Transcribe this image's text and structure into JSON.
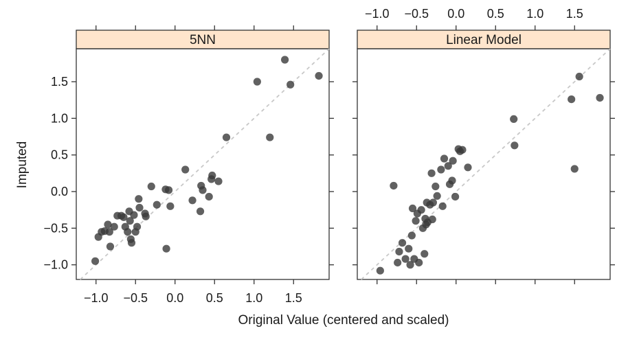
{
  "chart_data": {
    "type": "scatter",
    "xlabel": "Original Value (centered and scaled)",
    "ylabel": "Imputed",
    "xlim": [
      -1.25,
      1.95
    ],
    "ylim": [
      -1.2,
      1.95
    ],
    "x_ticks": [
      -1.0,
      -0.5,
      0.0,
      0.5,
      1.0,
      1.5
    ],
    "x_tick_labels": [
      "−1.0",
      "−0.5",
      "0.0",
      "0.5",
      "1.0",
      "1.5"
    ],
    "y_ticks": [
      -1.0,
      -0.5,
      0.0,
      0.5,
      1.0,
      1.5
    ],
    "y_tick_labels": [
      "−1.0",
      "−0.5",
      "0.0",
      "0.5",
      "1.0",
      "1.5"
    ],
    "reference_line": "y = x",
    "grid": false,
    "colors": {
      "point": "#3a3a3a",
      "strip": "#ffe5cc",
      "reference": "#c8c8c8"
    },
    "panels": [
      {
        "title": "5NN",
        "points": [
          [
            -1.01,
            -0.95
          ],
          [
            -0.97,
            -0.62
          ],
          [
            -0.93,
            -0.55
          ],
          [
            -0.89,
            -0.54
          ],
          [
            -0.85,
            -0.45
          ],
          [
            -0.83,
            -0.55
          ],
          [
            -0.82,
            -0.75
          ],
          [
            -0.77,
            -0.48
          ],
          [
            -0.73,
            -0.33
          ],
          [
            -0.68,
            -0.33
          ],
          [
            -0.65,
            -0.35
          ],
          [
            -0.63,
            -0.48
          ],
          [
            -0.6,
            -0.55
          ],
          [
            -0.58,
            -0.27
          ],
          [
            -0.57,
            -0.4
          ],
          [
            -0.56,
            -0.65
          ],
          [
            -0.55,
            -0.7
          ],
          [
            -0.52,
            -0.32
          ],
          [
            -0.5,
            -0.55
          ],
          [
            -0.48,
            -0.48
          ],
          [
            -0.46,
            -0.1
          ],
          [
            -0.45,
            -0.22
          ],
          [
            -0.38,
            -0.3
          ],
          [
            -0.37,
            -0.34
          ],
          [
            -0.3,
            0.07
          ],
          [
            -0.23,
            -0.18
          ],
          [
            -0.12,
            0.03
          ],
          [
            -0.11,
            -0.78
          ],
          [
            -0.08,
            0.02
          ],
          [
            -0.06,
            -0.2
          ],
          [
            0.13,
            0.3
          ],
          [
            0.22,
            -0.12
          ],
          [
            0.32,
            -0.27
          ],
          [
            0.33,
            0.08
          ],
          [
            0.35,
            0.02
          ],
          [
            0.43,
            -0.07
          ],
          [
            0.46,
            0.17
          ],
          [
            0.47,
            0.22
          ],
          [
            0.55,
            0.14
          ],
          [
            0.65,
            0.74
          ],
          [
            1.04,
            1.5
          ],
          [
            1.2,
            0.74
          ],
          [
            1.39,
            1.8
          ],
          [
            1.46,
            1.46
          ],
          [
            1.82,
            1.58
          ]
        ]
      },
      {
        "title": "Linear Model",
        "points": [
          [
            -0.96,
            -1.08
          ],
          [
            -0.79,
            0.08
          ],
          [
            -0.74,
            -0.97
          ],
          [
            -0.72,
            -0.82
          ],
          [
            -0.68,
            -0.7
          ],
          [
            -0.64,
            -0.92
          ],
          [
            -0.6,
            -0.78
          ],
          [
            -0.58,
            -1.0
          ],
          [
            -0.56,
            -0.6
          ],
          [
            -0.55,
            -0.23
          ],
          [
            -0.53,
            -0.92
          ],
          [
            -0.51,
            -0.4
          ],
          [
            -0.49,
            -0.3
          ],
          [
            -0.47,
            -0.97
          ],
          [
            -0.44,
            -0.25
          ],
          [
            -0.42,
            -0.5
          ],
          [
            -0.4,
            -0.85
          ],
          [
            -0.39,
            -0.37
          ],
          [
            -0.38,
            -0.45
          ],
          [
            -0.37,
            -0.15
          ],
          [
            -0.36,
            -0.42
          ],
          [
            -0.33,
            -0.18
          ],
          [
            -0.31,
            0.25
          ],
          [
            -0.3,
            -0.38
          ],
          [
            -0.29,
            -0.15
          ],
          [
            -0.26,
            0.07
          ],
          [
            -0.24,
            -0.06
          ],
          [
            -0.19,
            0.3
          ],
          [
            -0.17,
            -0.2
          ],
          [
            -0.15,
            0.45
          ],
          [
            -0.1,
            0.35
          ],
          [
            -0.08,
            0.1
          ],
          [
            -0.05,
            0.15
          ],
          [
            -0.04,
            0.42
          ],
          [
            -0.01,
            -0.07
          ],
          [
            0.03,
            0.58
          ],
          [
            0.05,
            0.55
          ],
          [
            0.08,
            0.57
          ],
          [
            0.15,
            0.33
          ],
          [
            0.73,
            0.99
          ],
          [
            0.74,
            0.63
          ],
          [
            1.46,
            1.26
          ],
          [
            1.5,
            0.31
          ],
          [
            1.56,
            1.57
          ],
          [
            1.82,
            1.28
          ]
        ]
      }
    ]
  }
}
